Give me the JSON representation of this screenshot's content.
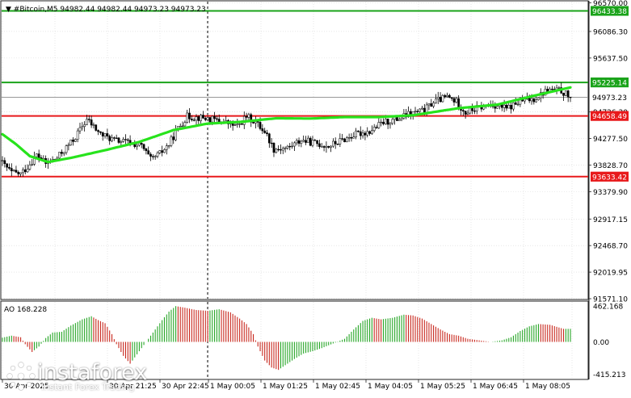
{
  "colors": {
    "bull": "#26a626",
    "bear": "#c8281e",
    "ma": "#27e31c",
    "green_level": "#1aa31a",
    "red_level": "#e8191b",
    "grid": "#d7d7d7",
    "current": "#8a8a8a"
  },
  "chart_data": [
    {
      "type": "candlestick",
      "title": "▼ #Bitcoin,M5  94982.44 94982.44 94973.23 94973.23",
      "symbol": "#Bitcoin,M5",
      "ohlc_header": {
        "open": 94982.44,
        "high": 94982.44,
        "low": 94973.23,
        "close": 94973.23
      },
      "ylim": [
        91571.1,
        96570.0
      ],
      "y_ticks": [
        "96570.00",
        "96086.30",
        "95637.50",
        "94726.30",
        "94277.50",
        "93828.70",
        "93379.90",
        "92917.15",
        "92468.70",
        "92019.95",
        "91571.10"
      ],
      "x_ticks": [
        "30 Apr 2025",
        "30 Apr 21:25",
        "30 Apr 22:45",
        "1 May 00:05",
        "1 May 01:25",
        "1 May 02:45",
        "1 May 04:05",
        "1 May 05:25",
        "1 May 06:45",
        "1 May 08:05"
      ],
      "levels": [
        {
          "value": 96433.38,
          "label": "96433.38",
          "color": "green"
        },
        {
          "value": 95225.14,
          "label": "95225.14",
          "color": "green"
        },
        {
          "value": 94658.49,
          "label": "94658.49",
          "color": "red"
        },
        {
          "value": 93633.42,
          "label": "93633.42",
          "color": "red"
        }
      ],
      "current_price": {
        "value": 94973.23,
        "label": "94973.23"
      },
      "moving_average": {
        "anchors": [
          [
            0,
            94350
          ],
          [
            6,
            94180
          ],
          [
            12,
            93980
          ],
          [
            20,
            93880
          ],
          [
            30,
            93950
          ],
          [
            45,
            94080
          ],
          [
            60,
            94220
          ],
          [
            75,
            94420
          ],
          [
            90,
            94530
          ],
          [
            105,
            94560
          ],
          [
            120,
            94620
          ],
          [
            135,
            94615
          ],
          [
            150,
            94640
          ],
          [
            165,
            94640
          ],
          [
            180,
            94670
          ],
          [
            200,
            94790
          ],
          [
            217,
            94850
          ],
          [
            233,
            95000
          ],
          [
            250,
            95150
          ]
        ]
      },
      "price_anchors": [
        [
          0,
          93900
        ],
        [
          5,
          93700
        ],
        [
          9,
          93680
        ],
        [
          12,
          93800
        ],
        [
          16,
          94000
        ],
        [
          20,
          93850
        ],
        [
          25,
          93950
        ],
        [
          32,
          94250
        ],
        [
          38,
          94600
        ],
        [
          44,
          94350
        ],
        [
          50,
          94250
        ],
        [
          55,
          94220
        ],
        [
          62,
          94150
        ],
        [
          66,
          93920
        ],
        [
          70,
          94020
        ],
        [
          74,
          94180
        ],
        [
          78,
          94450
        ],
        [
          82,
          94650
        ],
        [
          90,
          94620
        ],
        [
          98,
          94560
        ],
        [
          104,
          94480
        ],
        [
          108,
          94650
        ],
        [
          112,
          94550
        ],
        [
          116,
          94400
        ],
        [
          120,
          94100
        ],
        [
          126,
          94120
        ],
        [
          132,
          94250
        ],
        [
          138,
          94200
        ],
        [
          144,
          94150
        ],
        [
          150,
          94250
        ],
        [
          156,
          94350
        ],
        [
          162,
          94400
        ],
        [
          168,
          94550
        ],
        [
          174,
          94600
        ],
        [
          180,
          94700
        ],
        [
          186,
          94750
        ],
        [
          190,
          94900
        ],
        [
          196,
          94980
        ],
        [
          200,
          94900
        ],
        [
          204,
          94720
        ],
        [
          210,
          94800
        ],
        [
          216,
          94850
        ],
        [
          222,
          94780
        ],
        [
          228,
          94900
        ],
        [
          234,
          94950
        ],
        [
          240,
          95100
        ],
        [
          246,
          95080
        ],
        [
          250,
          94973
        ]
      ],
      "ao": {
        "label": "AO 168.228",
        "value": 168.228,
        "ylim": [
          -415.213,
          462.168
        ],
        "y_ticks": [
          "462.168",
          "0.00",
          "-415.213"
        ],
        "anchors": [
          [
            0,
            55
          ],
          [
            4,
            80
          ],
          [
            8,
            60
          ],
          [
            10,
            -30
          ],
          [
            13,
            -130
          ],
          [
            16,
            -60
          ],
          [
            19,
            50
          ],
          [
            22,
            120
          ],
          [
            26,
            130
          ],
          [
            30,
            210
          ],
          [
            35,
            290
          ],
          [
            39,
            330
          ],
          [
            42,
            280
          ],
          [
            45,
            240
          ],
          [
            48,
            100
          ],
          [
            50,
            -30
          ],
          [
            53,
            -180
          ],
          [
            56,
            -280
          ],
          [
            59,
            -160
          ],
          [
            62,
            -40
          ],
          [
            66,
            120
          ],
          [
            70,
            280
          ],
          [
            73,
            390
          ],
          [
            76,
            460
          ],
          [
            80,
            440
          ],
          [
            85,
            410
          ],
          [
            90,
            400
          ],
          [
            95,
            420
          ],
          [
            100,
            380
          ],
          [
            104,
            300
          ],
          [
            107,
            230
          ],
          [
            110,
            100
          ],
          [
            112,
            -60
          ],
          [
            115,
            -240
          ],
          [
            118,
            -330
          ],
          [
            121,
            -360
          ],
          [
            124,
            -300
          ],
          [
            128,
            -220
          ],
          [
            132,
            -150
          ],
          [
            136,
            -120
          ],
          [
            140,
            -80
          ],
          [
            145,
            -20
          ],
          [
            150,
            40
          ],
          [
            154,
            160
          ],
          [
            158,
            270
          ],
          [
            162,
            310
          ],
          [
            166,
            290
          ],
          [
            171,
            310
          ],
          [
            176,
            350
          ],
          [
            180,
            340
          ],
          [
            184,
            300
          ],
          [
            188,
            230
          ],
          [
            192,
            160
          ],
          [
            196,
            100
          ],
          [
            200,
            80
          ],
          [
            204,
            40
          ],
          [
            209,
            20
          ],
          [
            214,
            0
          ],
          [
            219,
            20
          ],
          [
            223,
            60
          ],
          [
            227,
            140
          ],
          [
            231,
            200
          ],
          [
            235,
            230
          ],
          [
            240,
            220
          ],
          [
            246,
            168
          ]
        ]
      }
    }
  ],
  "watermark": {
    "brand": "instaforex",
    "tagline": "Instant Forex Trading"
  }
}
